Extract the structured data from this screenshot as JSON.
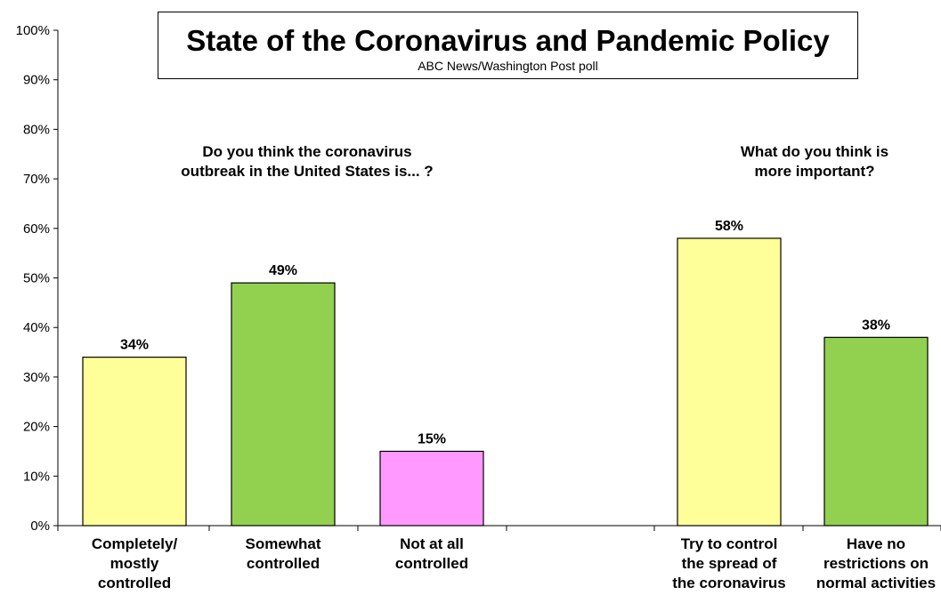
{
  "title": "State of the Coronavirus and Pandemic Policy",
  "subtitle": "ABC News/Washington Post poll",
  "colors": {
    "yellow": "#FFFF99",
    "green": "#92D050",
    "pink": "#FF99FF",
    "axis": "#000000"
  },
  "chart_data": {
    "type": "bar",
    "ylim": [
      0,
      100
    ],
    "y_ticks": [
      "0%",
      "10%",
      "20%",
      "30%",
      "40%",
      "50%",
      "60%",
      "70%",
      "80%",
      "90%",
      "100%"
    ],
    "grid": false,
    "legend": "none",
    "groups": [
      {
        "question": [
          "Do you think the coronavirus",
          "outbreak in the United States is... ?"
        ],
        "categories": [
          {
            "label": [
              "Completely/",
              "mostly",
              "controlled"
            ],
            "value": 34,
            "value_label": "34%",
            "color": "yellow"
          },
          {
            "label": [
              "Somewhat",
              "controlled"
            ],
            "value": 49,
            "value_label": "49%",
            "color": "green"
          },
          {
            "label": [
              "Not at all",
              "controlled"
            ],
            "value": 15,
            "value_label": "15%",
            "color": "pink"
          }
        ]
      },
      {
        "question": [
          "What do you think is",
          "more important?"
        ],
        "categories": [
          {
            "label": [
              "Try to control",
              "the spread of",
              "the coronavirus"
            ],
            "value": 58,
            "value_label": "58%",
            "color": "yellow"
          },
          {
            "label": [
              "Have no",
              "restrictions on",
              "normal activities"
            ],
            "value": 38,
            "value_label": "38%",
            "color": "green"
          }
        ]
      }
    ]
  }
}
